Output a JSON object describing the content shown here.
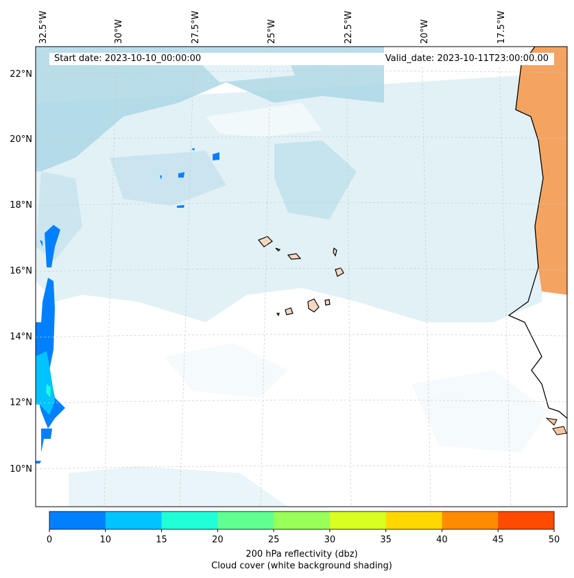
{
  "header": {
    "start_date": "Start date: 2023-10-10_00:00:00",
    "valid_date": "Valid_date: 2023-10-11T23:00:00.00"
  },
  "map": {
    "lon_labels": [
      "32.5°W",
      "30°W",
      "27.5°W",
      "25°W",
      "22.5°W",
      "20°W",
      "17.5°W"
    ],
    "lat_labels": [
      "22°N",
      "20°N",
      "18°N",
      "16°N",
      "14°N",
      "12°N",
      "10°N"
    ]
  },
  "colorbar": {
    "ticks": [
      "0",
      "10",
      "15",
      "20",
      "25",
      "30",
      "35",
      "40",
      "45",
      "50"
    ],
    "colors": [
      "#0080ff",
      "#00c4ff",
      "#20ffd8",
      "#60ff90",
      "#98ff58",
      "#d8ff20",
      "#ffd800",
      "#ff8c00",
      "#ff4a00"
    ],
    "label_line1": "200 hPa reflectivity (dbz)",
    "label_line2": "Cloud cover (white background shading)"
  },
  "colors": {
    "cloud": "#add8e6",
    "land": "#f4a460",
    "reflectivity_blue": "#0080ff",
    "reflectivity_cyan": "#00c4ff"
  }
}
